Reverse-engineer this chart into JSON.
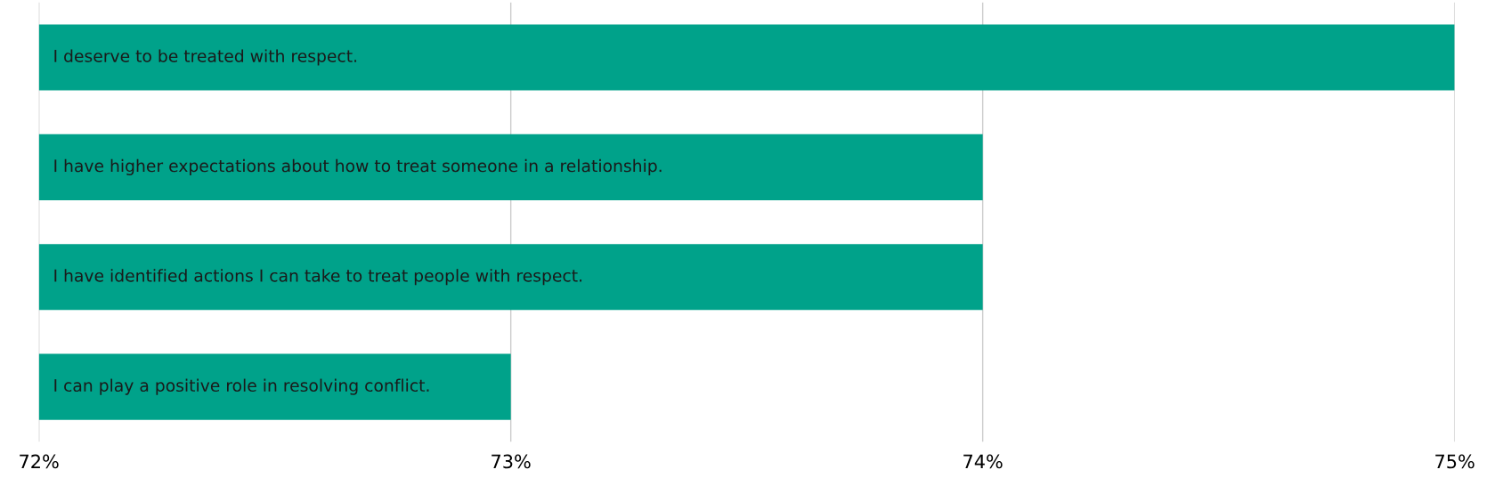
{
  "chart_data": {
    "type": "bar",
    "orientation": "horizontal",
    "categories": [
      "I deserve to be treated with respect.",
      "I have higher expectations about how to treat someone in a relationship.",
      "I have identified actions I can take to treat people with respect.",
      "I can play a positive role in resolving conflict."
    ],
    "values": [
      75,
      74,
      74,
      73
    ],
    "color": "#00a28a",
    "xlim": [
      72,
      75
    ],
    "xticks": [
      {
        "value": 72,
        "label": "72%"
      },
      {
        "value": 73,
        "label": "73%"
      },
      {
        "value": 74,
        "label": "74%"
      },
      {
        "value": 75,
        "label": "75%"
      }
    ],
    "grid": "x"
  }
}
